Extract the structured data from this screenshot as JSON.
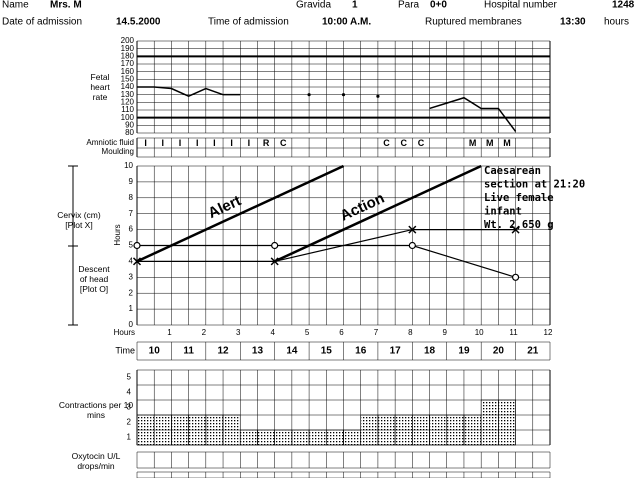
{
  "header": {
    "name_label": "Name",
    "name": "Mrs. M",
    "gravida_label": "Gravida",
    "gravida": "1",
    "para_label": "Para",
    "para": "0+0",
    "hospital_label": "Hospital number",
    "hospital": "1248",
    "admission_date_label": "Date of admission",
    "admission_date": "14.5.2000",
    "admission_time_label": "Time of admission",
    "admission_time": "10:00 A.M.",
    "membranes_label": "Ruptured membranes",
    "membranes": "13:30",
    "membranes_unit": "hours"
  },
  "amniotic_fluid": {
    "label": "Amniotic fluid",
    "values": [
      "I",
      "I",
      "I",
      "I",
      "I",
      "I",
      "I",
      "R",
      "C",
      null,
      null,
      null,
      null,
      null,
      "C",
      "C",
      "C",
      null,
      null,
      "M",
      "M",
      "M",
      null,
      null
    ]
  },
  "moulding": {
    "label": "Moulding"
  },
  "oxytocin": {
    "label": "Oxytocin U/L drops/min"
  },
  "chart_data": [
    {
      "type": "line",
      "y_label": "Fetal heart rate",
      "x": [
        0,
        0.5,
        1,
        1.5,
        2,
        2.5,
        3,
        3.5,
        4,
        4.5,
        5,
        5.5,
        6,
        6.5,
        7,
        7.5,
        8,
        8.5,
        9,
        9.5,
        10,
        10.5,
        11
      ],
      "values": [
        140,
        140,
        138,
        128,
        138,
        130,
        130,
        null,
        null,
        null,
        130,
        null,
        130,
        null,
        128,
        null,
        null,
        112,
        119,
        126,
        112,
        112,
        82
      ],
      "color": "#000000",
      "xlim": [
        0,
        12
      ],
      "ylim": [
        80,
        200
      ],
      "yticks": [
        200,
        190,
        180,
        170,
        160,
        150,
        140,
        130,
        120,
        110,
        100,
        90,
        80
      ],
      "reference_lines": [
        180,
        100
      ],
      "grid": true
    },
    {
      "type": "line",
      "y_label": "Hours",
      "x_label": "Hours",
      "time_label": "Time",
      "time": [
        "10",
        "11",
        "12",
        "13",
        "14",
        "15",
        "16",
        "17",
        "18",
        "19",
        "20",
        "21"
      ],
      "xlim": [
        0,
        12
      ],
      "ylim": [
        0,
        10
      ],
      "xticks": [
        1,
        2,
        3,
        4,
        5,
        6,
        7,
        8,
        9,
        10,
        11,
        12
      ],
      "yticks": [
        0,
        1,
        2,
        3,
        4,
        5,
        6,
        7,
        8,
        9,
        10
      ],
      "grid": true,
      "lines": [
        {
          "name": "Alert",
          "x": [
            0,
            6
          ],
          "values": [
            4,
            10
          ]
        },
        {
          "name": "Action",
          "x": [
            4,
            10
          ],
          "values": [
            4,
            10
          ]
        }
      ],
      "series": [
        {
          "name": "Cervix (cm) [Plot X]",
          "marker": "x",
          "color": "#000000",
          "x": [
            0,
            4,
            8,
            11
          ],
          "values": [
            4,
            4,
            6,
            6
          ]
        },
        {
          "name": "Descent of head [Plot O]",
          "marker": "o",
          "color": "#000000",
          "x": [
            0,
            4,
            8,
            11
          ],
          "values": [
            5,
            5,
            5,
            3
          ]
        }
      ],
      "annotation": [
        "Caesarean",
        "section at 21:20",
        "Live female",
        "infant",
        "Wt. 2,650 g"
      ]
    },
    {
      "type": "bar",
      "y_label": "Contractions per 10 mins",
      "x": [
        0,
        0.5,
        1,
        1.5,
        2,
        2.5,
        3,
        3.5,
        4,
        4.5,
        5,
        5.5,
        6,
        6.5,
        7,
        7.5,
        8,
        8.5,
        9,
        9.5,
        10,
        10.5,
        11,
        11.5
      ],
      "values": [
        2,
        2,
        2,
        2,
        2,
        2,
        1,
        1,
        1,
        1,
        1,
        1,
        1,
        2,
        2,
        2,
        2,
        2,
        2,
        2,
        3,
        3,
        0,
        0
      ],
      "color": "#000000",
      "xlim": [
        0,
        12
      ],
      "ylim": [
        0,
        5
      ],
      "yticks": [
        1,
        2,
        3,
        4,
        5
      ],
      "grid": true
    }
  ]
}
